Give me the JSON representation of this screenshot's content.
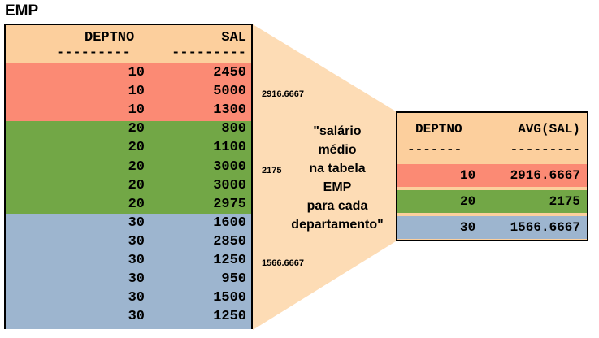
{
  "title": "EMP",
  "emp_table": {
    "headers": [
      "DEPTNO",
      "SAL"
    ],
    "underline": [
      "---------",
      "---------"
    ],
    "rows": [
      {
        "deptno": "10",
        "sal": "2450"
      },
      {
        "deptno": "10",
        "sal": "5000"
      },
      {
        "deptno": "10",
        "sal": "1300"
      },
      {
        "deptno": "20",
        "sal": "800"
      },
      {
        "deptno": "20",
        "sal": "1100"
      },
      {
        "deptno": "20",
        "sal": "3000"
      },
      {
        "deptno": "20",
        "sal": "3000"
      },
      {
        "deptno": "20",
        "sal": "2975"
      },
      {
        "deptno": "30",
        "sal": "1600"
      },
      {
        "deptno": "30",
        "sal": "2850"
      },
      {
        "deptno": "30",
        "sal": "1250"
      },
      {
        "deptno": "30",
        "sal": "950"
      },
      {
        "deptno": "30",
        "sal": "1500"
      },
      {
        "deptno": "30",
        "sal": "1250"
      }
    ]
  },
  "group_averages": [
    "2916.6667",
    "2175",
    "1566.6667"
  ],
  "explanation": [
    "\"salário",
    "médio",
    "na tabela",
    "EMP",
    "para cada",
    "departamento\""
  ],
  "avg_table": {
    "headers": [
      "DEPTNO",
      "AVG(SAL)"
    ],
    "underline": [
      "-------",
      "---------"
    ],
    "rows": [
      {
        "deptno": "10",
        "avg": "2916.6667"
      },
      {
        "deptno": "20",
        "avg": "2175"
      },
      {
        "deptno": "30",
        "avg": "1566.6667"
      }
    ]
  },
  "colors": {
    "header_bg": "#fccf9d",
    "dept10": "#fb8a74",
    "dept20": "#72a746",
    "dept30": "#9db5cf"
  }
}
